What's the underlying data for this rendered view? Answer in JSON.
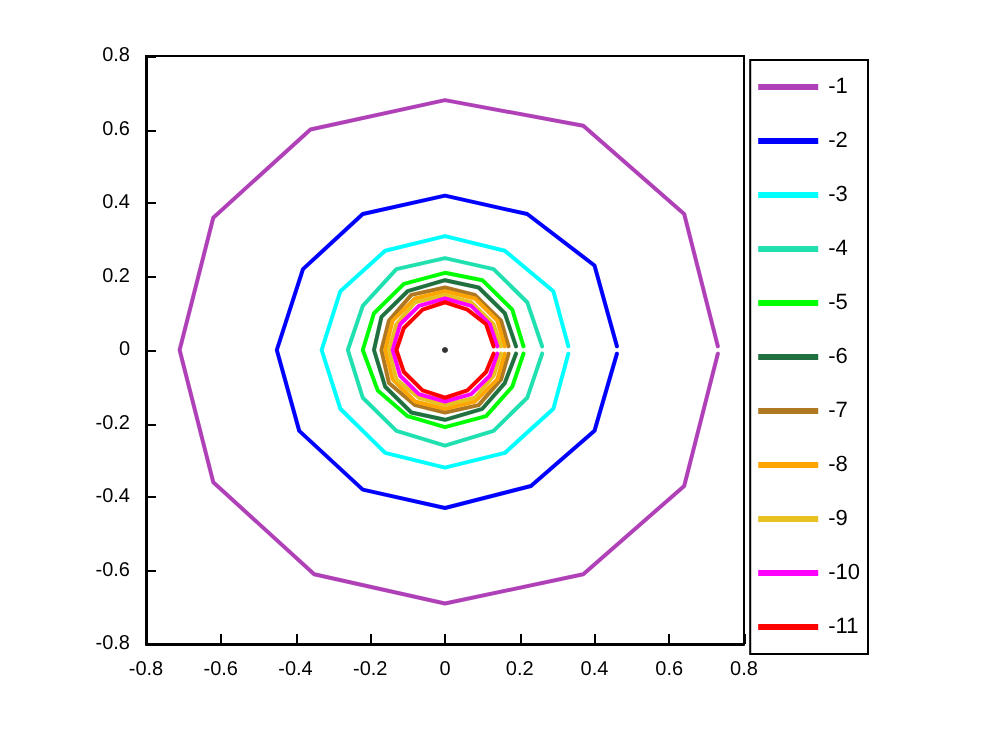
{
  "chart_data": {
    "type": "line",
    "xlim": [
      -0.8,
      0.8
    ],
    "ylim": [
      -0.8,
      0.8
    ],
    "xticks": [
      -0.8,
      -0.6,
      -0.4,
      -0.2,
      0,
      0.2,
      0.4,
      0.6,
      0.8
    ],
    "yticks": [
      -0.8,
      -0.6,
      -0.4,
      -0.2,
      0,
      0.2,
      0.4,
      0.6,
      0.8
    ],
    "grid": false,
    "legend": "right",
    "marker": "none",
    "line_style": "solid",
    "series": [
      {
        "name": "-1",
        "color": "#b040b8",
        "x": [
          0.73,
          0.64,
          0.37,
          0,
          -0.36,
          -0.62,
          -0.71,
          -0.62,
          -0.35,
          0,
          0.37,
          0.64,
          0.73
        ],
        "values": [
          0.01,
          0.37,
          0.61,
          0.68,
          0.6,
          0.36,
          0,
          -0.36,
          -0.61,
          -0.69,
          -0.61,
          -0.37,
          -0.01
        ]
      },
      {
        "name": "-2",
        "color": "#0000ff",
        "x": [
          0.46,
          0.4,
          0.22,
          0,
          -0.22,
          -0.38,
          -0.45,
          -0.39,
          -0.22,
          0,
          0.23,
          0.4,
          0.46
        ],
        "values": [
          0.01,
          0.23,
          0.37,
          0.42,
          0.37,
          0.22,
          0,
          -0.22,
          -0.38,
          -0.43,
          -0.37,
          -0.22,
          -0.01
        ]
      },
      {
        "name": "-3",
        "color": "#00ffff",
        "x": [
          0.33,
          0.29,
          0.16,
          0,
          -0.16,
          -0.28,
          -0.33,
          -0.28,
          -0.16,
          0,
          0.16,
          0.29,
          0.33
        ],
        "values": [
          0.01,
          0.16,
          0.27,
          0.31,
          0.27,
          0.16,
          0,
          -0.16,
          -0.28,
          -0.32,
          -0.28,
          -0.16,
          -0.01
        ]
      },
      {
        "name": "-4",
        "color": "#20e0b0",
        "x": [
          0.26,
          0.22,
          0.13,
          0,
          -0.13,
          -0.22,
          -0.26,
          -0.22,
          -0.13,
          0,
          0.13,
          0.22,
          0.26
        ],
        "values": [
          0.01,
          0.13,
          0.22,
          0.25,
          0.22,
          0.12,
          0,
          -0.13,
          -0.22,
          -0.26,
          -0.22,
          -0.13,
          -0.01
        ]
      },
      {
        "name": "-5",
        "color": "#00ff00",
        "x": [
          0.21,
          0.18,
          0.1,
          0,
          -0.11,
          -0.19,
          -0.22,
          -0.18,
          -0.1,
          0,
          0.11,
          0.18,
          0.21
        ],
        "values": [
          0.01,
          0.11,
          0.19,
          0.21,
          0.18,
          0.1,
          0,
          -0.11,
          -0.18,
          -0.21,
          -0.18,
          -0.1,
          -0.01
        ]
      },
      {
        "name": "-6",
        "color": "#207040",
        "x": [
          0.19,
          0.16,
          0.09,
          0,
          -0.1,
          -0.17,
          -0.19,
          -0.16,
          -0.09,
          0,
          0.1,
          0.16,
          0.19
        ],
        "values": [
          0.01,
          0.1,
          0.17,
          0.19,
          0.16,
          0.09,
          0,
          -0.1,
          -0.17,
          -0.19,
          -0.16,
          -0.09,
          -0.01
        ]
      },
      {
        "name": "-7",
        "color": "#b07820",
        "x": [
          0.17,
          0.15,
          0.08,
          0,
          -0.09,
          -0.15,
          -0.17,
          -0.15,
          -0.08,
          0,
          0.09,
          0.15,
          0.17
        ],
        "values": [
          0.01,
          0.08,
          0.15,
          0.17,
          0.15,
          0.08,
          0,
          -0.09,
          -0.15,
          -0.17,
          -0.15,
          -0.08,
          -0.01
        ]
      },
      {
        "name": "-8",
        "color": "#ffa500",
        "x": [
          0.16,
          0.14,
          0.08,
          0,
          -0.08,
          -0.14,
          -0.16,
          -0.14,
          -0.08,
          0,
          0.08,
          0.14,
          0.16
        ],
        "values": [
          0.01,
          0.08,
          0.14,
          0.16,
          0.14,
          0.08,
          0,
          -0.08,
          -0.14,
          -0.16,
          -0.14,
          -0.08,
          -0.01
        ]
      },
      {
        "name": "-9",
        "color": "#e8c020",
        "x": [
          0.15,
          0.13,
          0.07,
          0,
          -0.08,
          -0.13,
          -0.15,
          -0.13,
          -0.07,
          0,
          0.08,
          0.13,
          0.15
        ],
        "values": [
          0.01,
          0.07,
          0.13,
          0.15,
          0.13,
          0.07,
          0,
          -0.08,
          -0.13,
          -0.15,
          -0.13,
          -0.07,
          -0.01
        ]
      },
      {
        "name": "-10",
        "color": "#ff00ff",
        "x": [
          0.14,
          0.12,
          0.07,
          0,
          -0.07,
          -0.12,
          -0.14,
          -0.12,
          -0.07,
          0,
          0.07,
          0.12,
          0.14
        ],
        "values": [
          0.01,
          0.07,
          0.12,
          0.14,
          0.12,
          0.07,
          0,
          -0.07,
          -0.12,
          -0.14,
          -0.12,
          -0.07,
          -0.01
        ]
      },
      {
        "name": "-11",
        "color": "#ff0000",
        "x": [
          0.13,
          0.11,
          0.06,
          0,
          -0.06,
          -0.11,
          -0.13,
          -0.11,
          -0.06,
          0,
          0.06,
          0.11,
          0.13
        ],
        "values": [
          0.01,
          0.07,
          0.11,
          0.13,
          0.11,
          0.06,
          0,
          -0.06,
          -0.11,
          -0.13,
          -0.11,
          -0.06,
          -0.01
        ]
      },
      {
        "type": "scatter",
        "marker": "circle",
        "color": "#000000",
        "x": [
          0
        ],
        "values": [
          0
        ]
      }
    ]
  }
}
